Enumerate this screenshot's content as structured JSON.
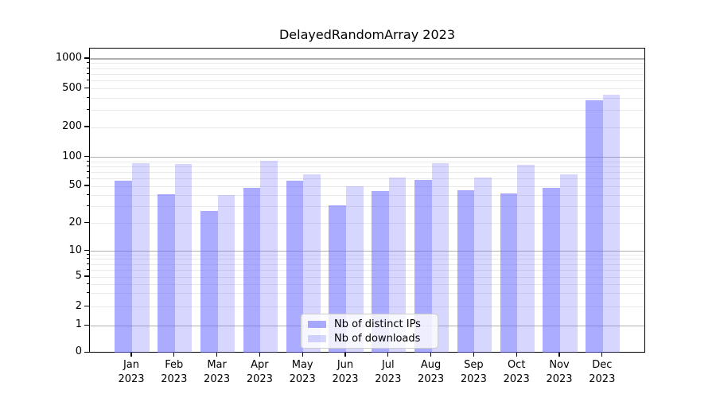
{
  "chart_data": {
    "type": "bar",
    "title": "DelayedRandomArray 2023",
    "categories": [
      "Jan",
      "Feb",
      "Mar",
      "Apr",
      "May",
      "Jun",
      "Jul",
      "Aug",
      "Sep",
      "Oct",
      "Nov",
      "Dec"
    ],
    "x_year_suffix": "2023",
    "series": [
      {
        "name": "Nb of distinct IPs",
        "color": "rgba(102,102,255,0.55)",
        "values": [
          57,
          41,
          27,
          48,
          57,
          31,
          44,
          58,
          45,
          42,
          48,
          380
        ]
      },
      {
        "name": "Nb of downloads",
        "color": "rgba(102,102,255,0.27)",
        "values": [
          87,
          85,
          40,
          91,
          66,
          50,
          62,
          87,
          62,
          84,
          67,
          430
        ]
      }
    ],
    "yscale": "symlog",
    "ylim": [
      0,
      1000
    ],
    "ytick_values": [
      0,
      1,
      2,
      5,
      10,
      20,
      50,
      100,
      200,
      500,
      1000
    ],
    "grid": true,
    "legend_position": "lower center"
  }
}
